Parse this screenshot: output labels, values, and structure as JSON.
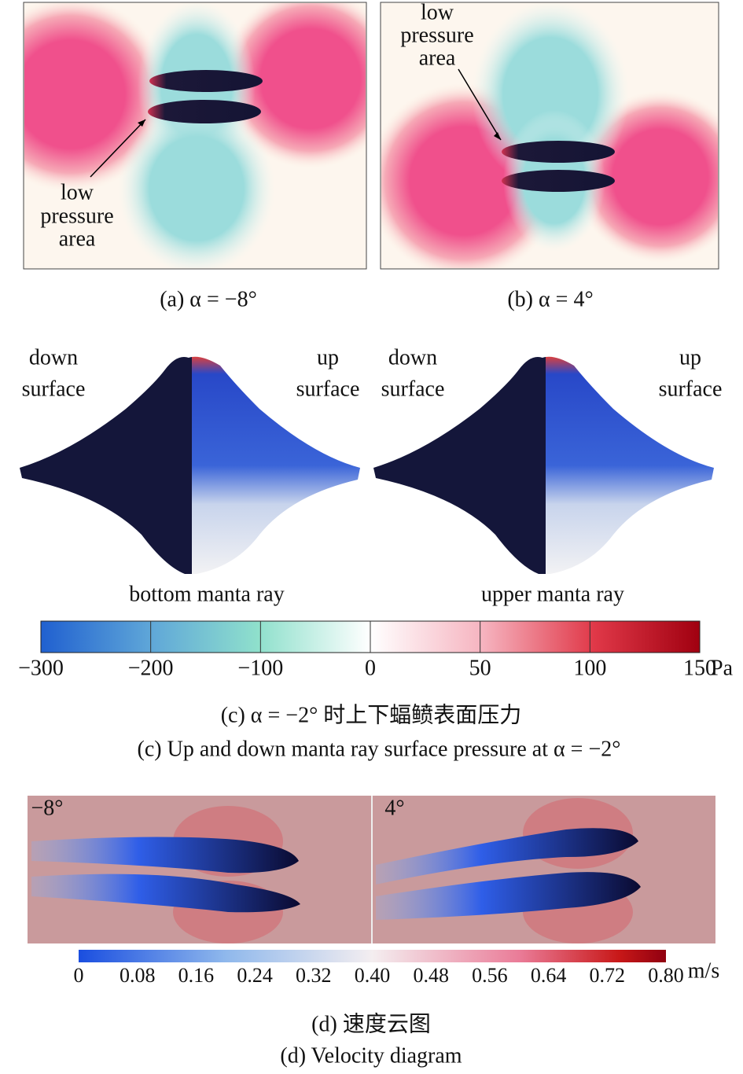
{
  "panel_a": {
    "annotation": [
      "low",
      "pressure",
      "area"
    ],
    "caption": "(a) α = −8°"
  },
  "panel_b": {
    "annotation": [
      "low",
      "pressure",
      "area"
    ],
    "caption": "(b) α = 4°"
  },
  "panel_c": {
    "left_labels": {
      "down": [
        "down",
        "surface"
      ],
      "up": [
        "up",
        "surface"
      ]
    },
    "right_labels": {
      "down": [
        "down",
        "surface"
      ],
      "up": [
        "up",
        "surface"
      ]
    },
    "bottom_name": "bottom manta ray",
    "upper_name": "upper manta ray",
    "colorbar": {
      "ticks": [
        "−300",
        "−200",
        "−100",
        "0",
        "50",
        "100",
        "150"
      ],
      "unit": "Pa"
    },
    "caption_cn": "(c) α = −2° 时上下蝠鲼表面压力",
    "caption_en": "(c) Up and down manta ray surface pressure at α = −2°"
  },
  "panel_d": {
    "left_label": "−8°",
    "right_label": "4°",
    "colorbar": {
      "ticks": [
        "0",
        "0.08",
        "0.16",
        "0.24",
        "0.32",
        "0.40",
        "0.48",
        "0.56",
        "0.64",
        "0.72",
        "0.80"
      ],
      "unit": "m/s"
    },
    "caption_cn": "(d) 速度云图",
    "caption_en": "(d) Velocity diagram"
  }
}
